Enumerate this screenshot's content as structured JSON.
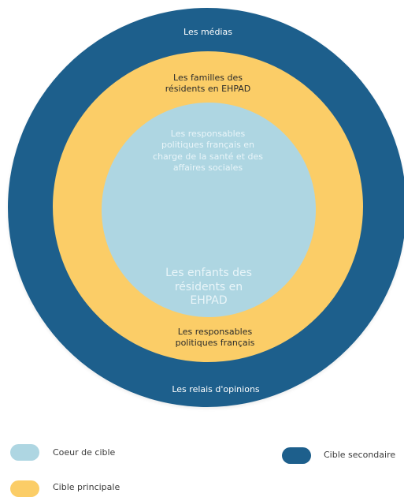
{
  "colors": {
    "secondary": "#1d5f8c",
    "principal": "#fbcd67",
    "core": "#aed6e2",
    "text_light": "#ffffff",
    "text_dark": "#2a2a2a",
    "text_core": "#e9f5f9"
  },
  "rings": {
    "outer": {
      "top_label": "Les médias",
      "bottom_label": "Les relais d'opinions"
    },
    "middle": {
      "top_label": [
        "Les familles des",
        "résidents en EHPAD"
      ],
      "bottom_label": [
        "Les responsables",
        "politiques français"
      ]
    },
    "core": {
      "top_label": [
        "Les responsables",
        "politiques français en",
        "charge de la santé et des",
        "affaires sociales"
      ],
      "bottom_label": [
        "Les enfants des",
        "résidents en",
        "EHPAD"
      ]
    }
  },
  "legend": {
    "items": [
      {
        "label": "Coeur de cible",
        "color": "#aed6e2"
      },
      {
        "label": "Cible secondaire",
        "color": "#1d5f8c"
      },
      {
        "label": "Cible principale",
        "color": "#fbcd67"
      }
    ]
  }
}
